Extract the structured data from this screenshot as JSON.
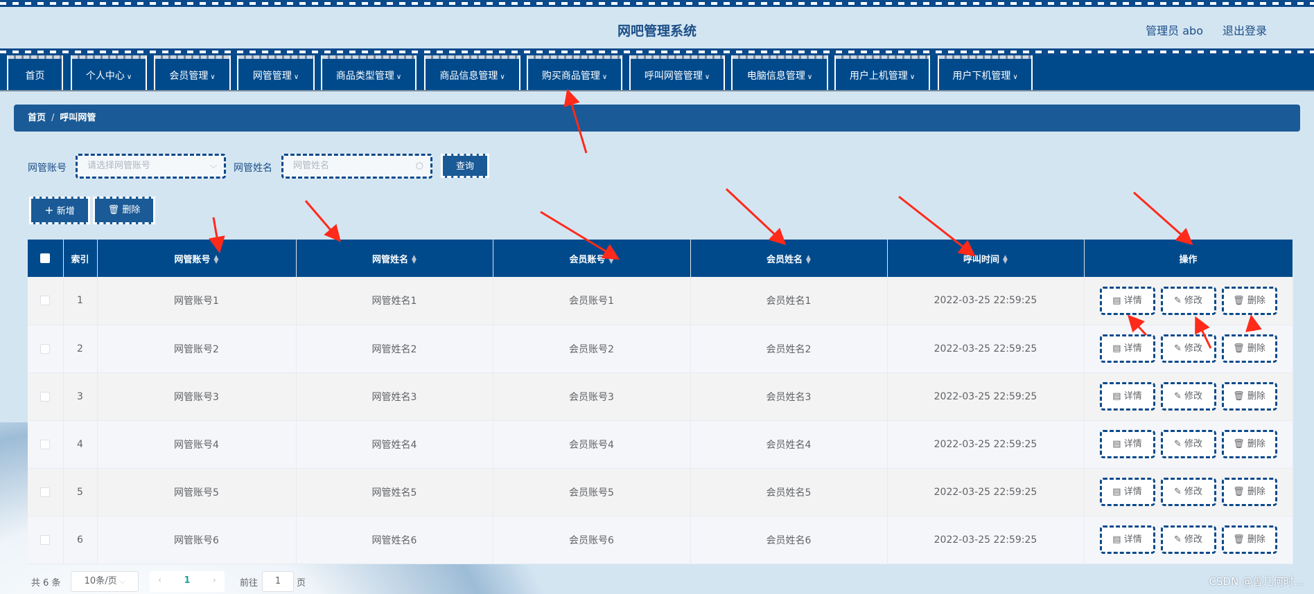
{
  "header": {
    "title": "网吧管理系统",
    "user": "管理员 abo",
    "logout": "退出登录"
  },
  "nav": [
    {
      "label": "首页",
      "chev": false
    },
    {
      "label": "个人中心",
      "chev": true
    },
    {
      "label": "会员管理",
      "chev": true
    },
    {
      "label": "网管管理",
      "chev": true
    },
    {
      "label": "商品类型管理",
      "chev": true
    },
    {
      "label": "商品信息管理",
      "chev": true
    },
    {
      "label": "购买商品管理",
      "chev": true
    },
    {
      "label": "呼叫网管管理",
      "chev": true
    },
    {
      "label": "电脑信息管理",
      "chev": true
    },
    {
      "label": "用户上机管理",
      "chev": true
    },
    {
      "label": "用户下机管理",
      "chev": true
    }
  ],
  "breadcrumb": {
    "home": "首页",
    "separator": "/",
    "current": "呼叫网管"
  },
  "search": {
    "account_label": "网管账号",
    "account_placeholder": "请选择网管账号",
    "name_label": "网管姓名",
    "name_placeholder": "网管姓名",
    "query_button": "查询"
  },
  "toolbar": {
    "add": "新增",
    "delete": "删除"
  },
  "table": {
    "columns": [
      "索引",
      "网管账号",
      "网管姓名",
      "会员账号",
      "会员姓名",
      "呼叫时间",
      "操作"
    ],
    "sortable": [
      false,
      true,
      true,
      true,
      true,
      true,
      false
    ],
    "rows": [
      [
        "1",
        "网管账号1",
        "网管姓名1",
        "会员账号1",
        "会员姓名1",
        "2022-03-25 22:59:25"
      ],
      [
        "2",
        "网管账号2",
        "网管姓名2",
        "会员账号2",
        "会员姓名2",
        "2022-03-25 22:59:25"
      ],
      [
        "3",
        "网管账号3",
        "网管姓名3",
        "会员账号3",
        "会员姓名3",
        "2022-03-25 22:59:25"
      ],
      [
        "4",
        "网管账号4",
        "网管姓名4",
        "会员账号4",
        "会员姓名4",
        "2022-03-25 22:59:25"
      ],
      [
        "5",
        "网管账号5",
        "网管姓名5",
        "会员账号5",
        "会员姓名5",
        "2022-03-25 22:59:25"
      ],
      [
        "6",
        "网管账号6",
        "网管姓名6",
        "会员账号6",
        "会员姓名6",
        "2022-03-25 22:59:25"
      ]
    ],
    "actions": {
      "detail": "详情",
      "edit": "修改",
      "delete": "删除"
    }
  },
  "pagination": {
    "total": "共 6 条",
    "page_size": "10条/页",
    "current_page": "1",
    "goto_label": "前往",
    "goto_value": "1",
    "page_suffix": "页"
  },
  "watermark": "CSDN @曾几何时…",
  "colors": {
    "primary": "#004a8c",
    "breadcrumb": "#1a5a96",
    "background": "#d4e5f2",
    "annotation": "#ff2a1a",
    "active_page": "#1aa89a"
  }
}
